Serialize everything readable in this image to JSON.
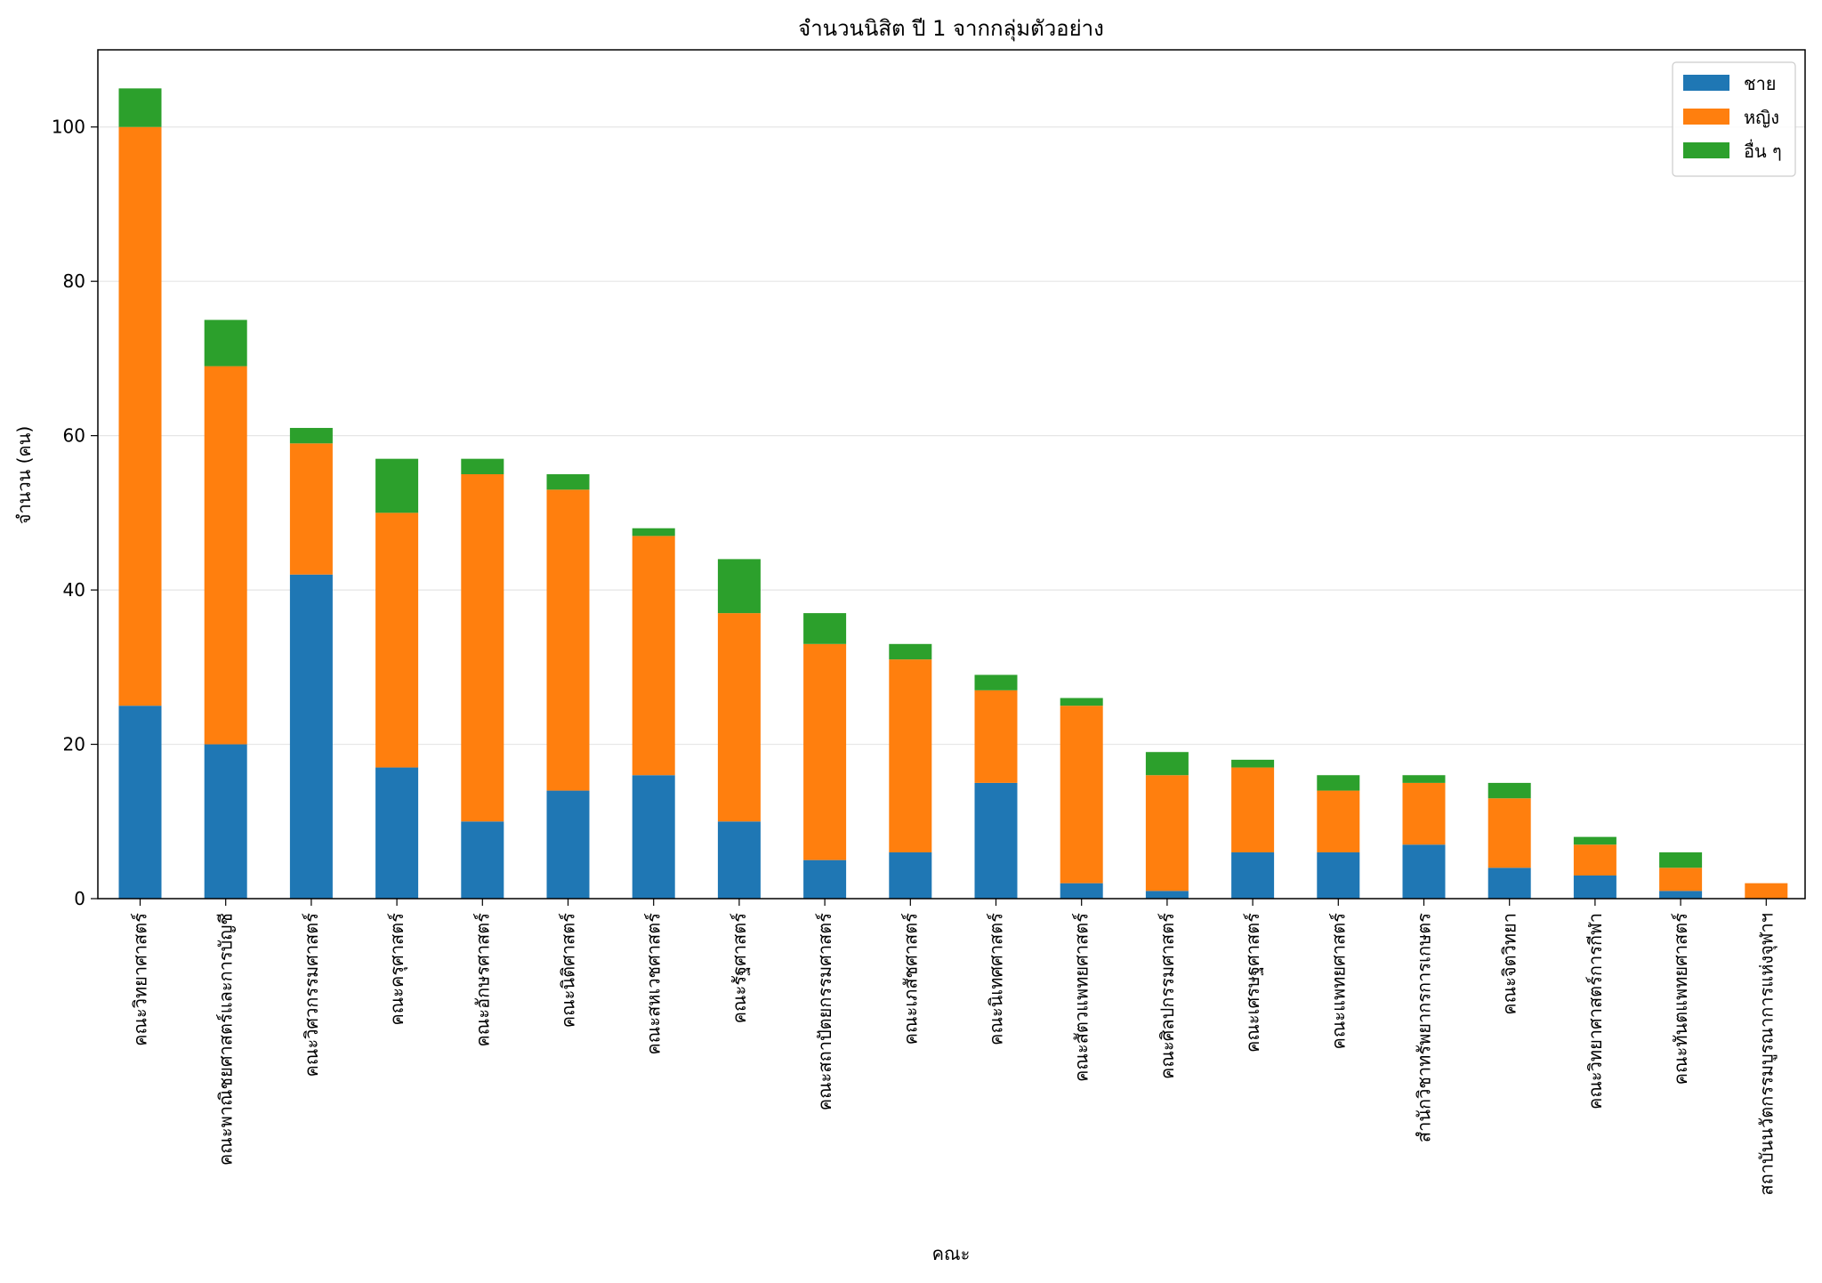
{
  "chart_data": {
    "type": "bar",
    "stacked": true,
    "title": "จำนวนนิสิต ปี 1 จากกลุ่มตัวอย่าง",
    "xlabel": "คณะ",
    "ylabel": "จำนวน (คน)",
    "ylim": [
      0,
      110
    ],
    "yticks": [
      0,
      20,
      40,
      60,
      80,
      100
    ],
    "grid": "y",
    "legend_position": "top-right",
    "categories": [
      "คณะวิทยาศาสตร์",
      "คณะพาณิชยศาสตร์และการบัญชี",
      "คณะวิศวกรรมศาสตร์",
      "คณะครุศาสตร์",
      "คณะอักษรศาสตร์",
      "คณะนิติศาสตร์",
      "คณะสหเวชศาสตร์",
      "คณะรัฐศาสตร์",
      "คณะสถาปัตยกรรมศาสตร์",
      "คณะเภสัชศาสตร์",
      "คณะนิเทศศาสตร์",
      "คณะสัตวแพทยศาสตร์",
      "คณะศิลปกรรมศาสตร์",
      "คณะเศรษฐศาสตร์",
      "คณะแพทยศาสตร์",
      "สำนักวิชาทรัพยากรการเกษตร",
      "คณะจิตวิทยา",
      "คณะวิทยาศาสตร์การกีฬา",
      "คณะทันตแพทยศาสตร์",
      "สถาบันนวัตกรรมบูรณาการแห่งจุฬาฯ"
    ],
    "series": [
      {
        "name": "ชาย",
        "color": "#1f77b4",
        "values": [
          25,
          20,
          42,
          17,
          10,
          14,
          16,
          10,
          5,
          6,
          15,
          2,
          1,
          6,
          6,
          7,
          4,
          3,
          1,
          0
        ]
      },
      {
        "name": "หญิง",
        "color": "#ff7f0e",
        "values": [
          75,
          49,
          17,
          33,
          45,
          39,
          31,
          27,
          28,
          25,
          12,
          23,
          15,
          11,
          8,
          8,
          9,
          4,
          3,
          2
        ]
      },
      {
        "name": "อื่น ๆ",
        "color": "#2ca02c",
        "values": [
          5,
          6,
          2,
          7,
          2,
          2,
          1,
          7,
          4,
          2,
          2,
          1,
          3,
          1,
          2,
          1,
          2,
          1,
          2,
          0
        ]
      }
    ]
  }
}
